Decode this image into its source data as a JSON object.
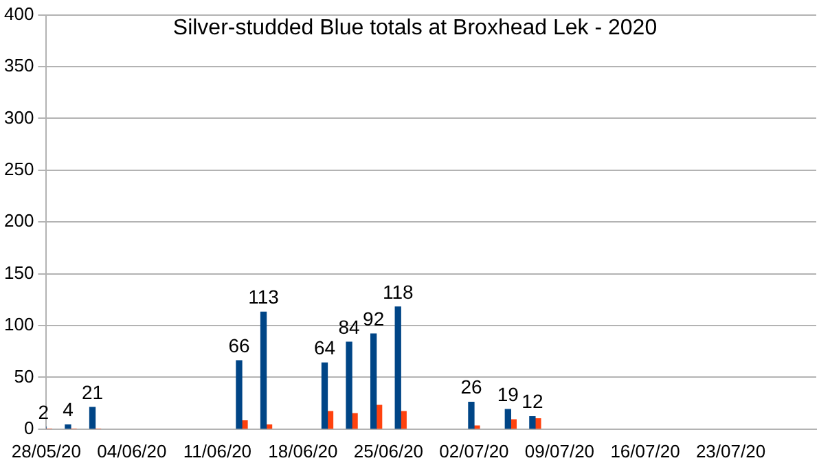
{
  "chart_data": {
    "type": "bar",
    "title": "Silver-studded Blue totals at Broxhead Lek - 2020",
    "x": [
      "2020-05-28",
      "2020-05-30",
      "2020-06-01",
      "2020-06-13",
      "2020-06-15",
      "2020-06-20",
      "2020-06-22",
      "2020-06-24",
      "2020-06-26",
      "2020-07-02",
      "2020-07-05",
      "2020-07-07"
    ],
    "series": [
      {
        "color": "#004586",
        "values": [
          2,
          4,
          21,
          66,
          113,
          64,
          84,
          92,
          118,
          26,
          19,
          12
        ],
        "value_labels": [
          "2",
          "4",
          "21",
          "66",
          "113",
          "64",
          "84",
          "92",
          "118",
          "26",
          "19",
          "12"
        ]
      },
      {
        "color": "#ff420e",
        "values": [
          0,
          0,
          0,
          8,
          4,
          17,
          15,
          23,
          17,
          3,
          9,
          10
        ]
      }
    ],
    "xlim": [
      "2020-05-28",
      "2020-07-30"
    ],
    "xticks": [
      {
        "value": "2020-05-28",
        "label": "28/05/20"
      },
      {
        "value": "2020-06-04",
        "label": "04/06/20"
      },
      {
        "value": "2020-06-11",
        "label": "11/06/20"
      },
      {
        "value": "2020-06-18",
        "label": "18/06/20"
      },
      {
        "value": "2020-06-25",
        "label": "25/06/20"
      },
      {
        "value": "2020-07-02",
        "label": "02/07/20"
      },
      {
        "value": "2020-07-09",
        "label": "09/07/20"
      },
      {
        "value": "2020-07-16",
        "label": "16/07/20"
      },
      {
        "value": "2020-07-23",
        "label": "23/07/20"
      }
    ],
    "ylim": [
      0,
      400
    ],
    "yticks": [
      0,
      50,
      100,
      150,
      200,
      250,
      300,
      350,
      400
    ],
    "grid": "y",
    "legend": false
  }
}
